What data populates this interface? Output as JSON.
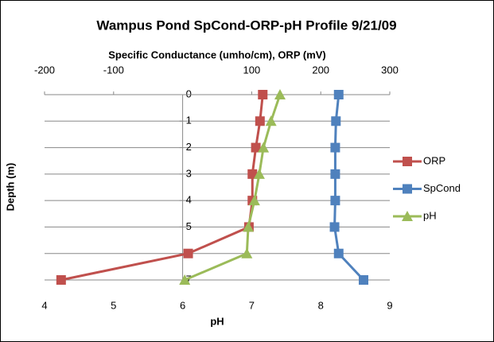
{
  "chart_data": {
    "type": "line",
    "title": "Wampus Pond SpCond-ORP-pH Profile 9/21/09",
    "xlabel": "Specific Conductance (umho/cm), ORP (mV)",
    "x2label": "pH",
    "ylabel": "Depth (m)",
    "depth": [
      0,
      1,
      2,
      3,
      4,
      5,
      6,
      7
    ],
    "ylim": [
      0,
      7
    ],
    "yticks": [
      0,
      1,
      2,
      3,
      4,
      5,
      6,
      7
    ],
    "y_inverted": true,
    "xlim": [
      -200,
      300
    ],
    "xticks": [
      -200,
      -100,
      100,
      200,
      300
    ],
    "x2lim": [
      4,
      9
    ],
    "x2ticks": [
      4,
      5,
      6,
      7,
      8,
      9
    ],
    "grid": true,
    "legend": "right",
    "series": [
      {
        "name": "ORP",
        "color": "#c0504d",
        "marker": "square",
        "values": [
          116,
          112,
          106,
          101,
          101,
          96,
          8,
          -176
        ]
      },
      {
        "name": "SpCond",
        "color": "#4f81bd",
        "marker": "square",
        "values": [
          226,
          222,
          221,
          221,
          221,
          220,
          226,
          262
        ]
      },
      {
        "name": "pH",
        "color": "#9bbb59",
        "marker": "triangle",
        "axis": "x2",
        "values": [
          7.41,
          7.28,
          7.17,
          7.11,
          7.04,
          6.95,
          6.93,
          6.03
        ]
      }
    ]
  }
}
